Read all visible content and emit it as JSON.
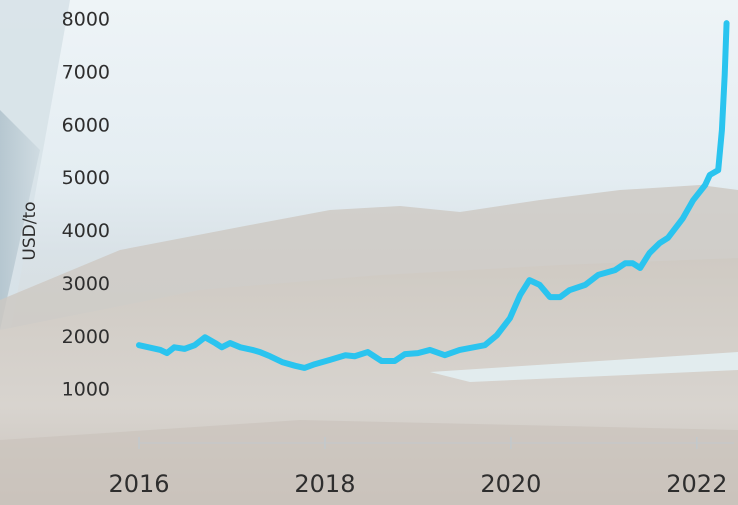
{
  "chart_data": {
    "type": "line",
    "y_label": "USD/to",
    "x": [
      2016.0,
      2016.23,
      2016.3,
      2016.38,
      2016.49,
      2016.6,
      2016.71,
      2016.82,
      2016.89,
      2016.98,
      2017.09,
      2017.22,
      2017.3,
      2017.41,
      2017.54,
      2017.68,
      2017.78,
      2017.89,
      2018.05,
      2018.22,
      2018.32,
      2018.46,
      2018.61,
      2018.75,
      2018.86,
      2019.0,
      2019.13,
      2019.29,
      2019.45,
      2019.72,
      2019.85,
      2019.99,
      2020.1,
      2020.2,
      2020.31,
      2020.42,
      2020.53,
      2020.63,
      2020.8,
      2020.94,
      2021.12,
      2021.23,
      2021.31,
      2021.39,
      2021.49,
      2021.6,
      2021.69,
      2021.85,
      2021.96,
      2022.09,
      2022.14,
      2022.23,
      2022.27,
      2022.3,
      2022.32
    ],
    "series": [
      {
        "color": "#2ac4ef",
        "values": [
          1850,
          1760,
          1700,
          1810,
          1780,
          1850,
          2000,
          1890,
          1810,
          1890,
          1810,
          1760,
          1720,
          1640,
          1530,
          1460,
          1420,
          1490,
          1570,
          1660,
          1640,
          1720,
          1550,
          1550,
          1680,
          1700,
          1760,
          1660,
          1760,
          1850,
          2040,
          2360,
          2800,
          3080,
          2990,
          2760,
          2760,
          2890,
          2990,
          3180,
          3270,
          3400,
          3400,
          3310,
          3590,
          3780,
          3880,
          4250,
          4590,
          4880,
          5070,
          5160,
          5920,
          6960,
          7940
        ]
      }
    ],
    "xlim": [
      2016,
      2022.4
    ],
    "xticks": [
      2016,
      2018,
      2020,
      2022
    ],
    "ylim": [
      0,
      8000
    ],
    "yticks": [
      1000,
      2000,
      3000,
      4000,
      5000,
      6000,
      7000,
      8000
    ]
  }
}
